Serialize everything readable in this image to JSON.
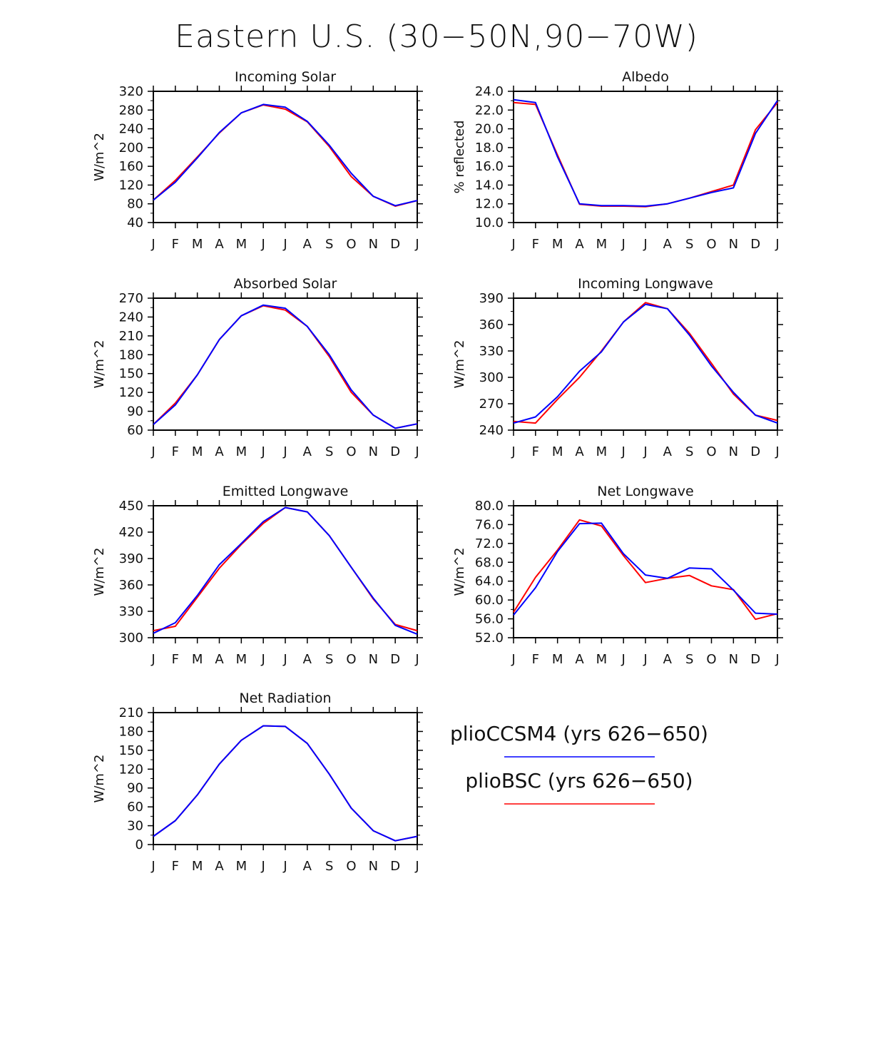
{
  "figure_title": "Eastern U.S. (30−50N,90−70W)",
  "colors": {
    "pliocsm4": "#0000ff",
    "pliobsc": "#ff0000",
    "axis": "#000000"
  },
  "months": [
    "J",
    "F",
    "M",
    "A",
    "M",
    "J",
    "J",
    "A",
    "S",
    "O",
    "N",
    "D",
    "J"
  ],
  "legend": {
    "entries": [
      {
        "label": "plioCCSM4 (yrs 626−650)",
        "color": "#0000ff"
      },
      {
        "label": "plioBSC (yrs 626−650)",
        "color": "#ff0000"
      }
    ]
  },
  "chart_data": [
    {
      "type": "line",
      "title": "Incoming Solar",
      "ylabel": "W/m^2",
      "ylim": [
        40,
        320
      ],
      "yticks": [
        "40",
        "80",
        "120",
        "160",
        "200",
        "240",
        "280",
        "320"
      ],
      "series": [
        {
          "name": "plioCCSM4 (yrs 626−650)",
          "color": "#0000ff",
          "values": [
            88,
            126,
            178,
            232,
            274,
            292,
            286,
            256,
            205,
            145,
            96,
            76,
            87
          ]
        },
        {
          "name": "plioBSC (yrs 626−650)",
          "color": "#ff0000",
          "values": [
            88,
            130,
            180,
            231,
            274,
            291,
            282,
            255,
            202,
            138,
            96,
            75,
            87
          ]
        }
      ]
    },
    {
      "type": "line",
      "title": "Albedo",
      "ylabel": "% reflected",
      "ylim": [
        10,
        24
      ],
      "yticks": [
        "10.0",
        "12.0",
        "14.0",
        "16.0",
        "18.0",
        "20.0",
        "22.0",
        "24.0"
      ],
      "series": [
        {
          "name": "plioCCSM4 (yrs 626−650)",
          "color": "#0000ff",
          "values": [
            23.1,
            22.8,
            17.0,
            12.0,
            11.8,
            11.8,
            11.75,
            12.0,
            12.6,
            13.2,
            13.7,
            19.5,
            23.0
          ]
        },
        {
          "name": "plioBSC (yrs 626−650)",
          "color": "#ff0000",
          "values": [
            22.8,
            22.6,
            17.2,
            11.95,
            11.75,
            11.75,
            11.7,
            12.0,
            12.6,
            13.3,
            14.0,
            19.9,
            22.8
          ]
        }
      ]
    },
    {
      "type": "line",
      "title": "Absorbed Solar",
      "ylabel": "W/m^2",
      "ylim": [
        60,
        270
      ],
      "yticks": [
        "60",
        "90",
        "120",
        "150",
        "180",
        "210",
        "240",
        "270"
      ],
      "series": [
        {
          "name": "plioCCSM4 (yrs 626−650)",
          "color": "#0000ff",
          "values": [
            69,
            100,
            148,
            204,
            242,
            259,
            254,
            225,
            180,
            124,
            84,
            63,
            70
          ]
        },
        {
          "name": "plioBSC (yrs 626−650)",
          "color": "#ff0000",
          "values": [
            69,
            103,
            148,
            204,
            242,
            258,
            251,
            225,
            177,
            120,
            84,
            63,
            70
          ]
        }
      ]
    },
    {
      "type": "line",
      "title": "Incoming Longwave",
      "ylabel": "W/m^2",
      "ylim": [
        240,
        390
      ],
      "yticks": [
        "240",
        "270",
        "300",
        "330",
        "360",
        "390"
      ],
      "series": [
        {
          "name": "plioCCSM4 (yrs 626−650)",
          "color": "#0000ff",
          "values": [
            248,
            255,
            278,
            307,
            329,
            363,
            383,
            378,
            348,
            313,
            283,
            257,
            248
          ]
        },
        {
          "name": "plioBSC (yrs 626−650)",
          "color": "#ff0000",
          "values": [
            250,
            248,
            275,
            300,
            330,
            363,
            385,
            378,
            350,
            316,
            281,
            257,
            251
          ]
        }
      ]
    },
    {
      "type": "line",
      "title": "Emitted Longwave",
      "ylabel": "W/m^2",
      "ylim": [
        300,
        450
      ],
      "yticks": [
        "300",
        "330",
        "360",
        "390",
        "420",
        "450"
      ],
      "series": [
        {
          "name": "plioCCSM4 (yrs 626−650)",
          "color": "#0000ff",
          "values": [
            305,
            317,
            348,
            383,
            407,
            432,
            448,
            443,
            416,
            380,
            345,
            314,
            304
          ]
        },
        {
          "name": "plioBSC (yrs 626−650)",
          "color": "#ff0000",
          "values": [
            308,
            313,
            346,
            379,
            406,
            430,
            448,
            443,
            416,
            380,
            344,
            315,
            308
          ]
        }
      ]
    },
    {
      "type": "line",
      "title": "Net Longwave",
      "ylabel": "W/m^2",
      "ylim": [
        52,
        80
      ],
      "yticks": [
        "52.0",
        "56.0",
        "60.0",
        "64.0",
        "68.0",
        "72.0",
        "76.0",
        "80.0"
      ],
      "series": [
        {
          "name": "plioCCSM4 (yrs 626−650)",
          "color": "#0000ff",
          "values": [
            56.8,
            62.6,
            70.3,
            76.2,
            76.3,
            69.8,
            65.3,
            64.6,
            66.8,
            66.6,
            62.1,
            57.2,
            57.0
          ]
        },
        {
          "name": "plioBSC (yrs 626−650)",
          "color": "#ff0000",
          "values": [
            57.4,
            64.8,
            70.6,
            77.0,
            75.7,
            69.4,
            63.7,
            64.6,
            65.2,
            63.0,
            62.2,
            55.9,
            57.1
          ]
        }
      ]
    },
    {
      "type": "line",
      "title": "Net Radiation",
      "ylabel": "W/m^2",
      "ylim": [
        0,
        210
      ],
      "yticks": [
        "0",
        "30",
        "60",
        "90",
        "120",
        "150",
        "180",
        "210"
      ],
      "series": [
        {
          "name": "plioCCSM4 (yrs 626−650)",
          "color": "#0000ff",
          "values": [
            13,
            38,
            79,
            128,
            166,
            189,
            188,
            161,
            112,
            58,
            22,
            6,
            13
          ]
        },
        {
          "name": "plioBSC (yrs 626−650)",
          "color": "#ff0000",
          "values": [
            13,
            38,
            79,
            128,
            166,
            189,
            188,
            161,
            112,
            58,
            22,
            6,
            13
          ]
        }
      ]
    }
  ]
}
